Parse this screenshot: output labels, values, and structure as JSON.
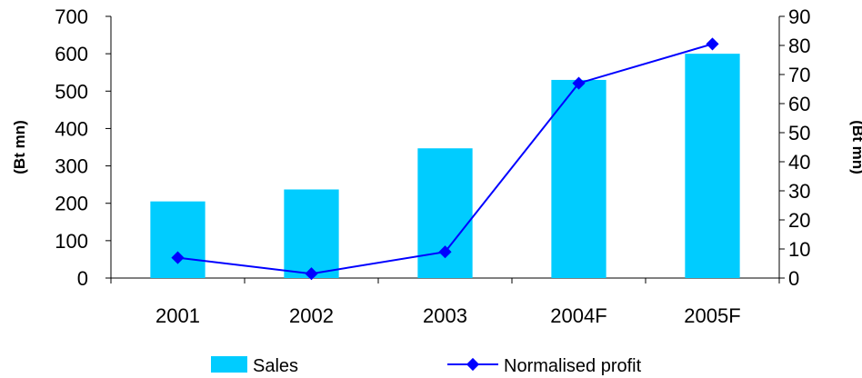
{
  "chart_data": {
    "type": "bar",
    "categories": [
      "2001",
      "2002",
      "2003",
      "2004F",
      "2005F"
    ],
    "series": [
      {
        "name": "Sales",
        "type": "bar",
        "axis": "left",
        "color": "#00ccff",
        "values": [
          205,
          237,
          347,
          530,
          600
        ]
      },
      {
        "name": "Normalised profit",
        "type": "line",
        "axis": "right",
        "color": "#0000ff",
        "marker": "diamond",
        "values": [
          7,
          1.5,
          9,
          67,
          80.5
        ]
      }
    ],
    "yaxis_left": {
      "label": "(Bt mn)",
      "min": 0,
      "max": 700,
      "step": 100,
      "ticks": [
        "0",
        "100",
        "200",
        "300",
        "400",
        "500",
        "600",
        "700"
      ]
    },
    "yaxis_right": {
      "label": "(Bt mn)",
      "min": 0,
      "max": 90,
      "step": 10,
      "ticks": [
        "0",
        "10",
        "20",
        "30",
        "40",
        "50",
        "60",
        "70",
        "80",
        "90"
      ]
    },
    "grid": false,
    "legend_position": "bottom"
  }
}
